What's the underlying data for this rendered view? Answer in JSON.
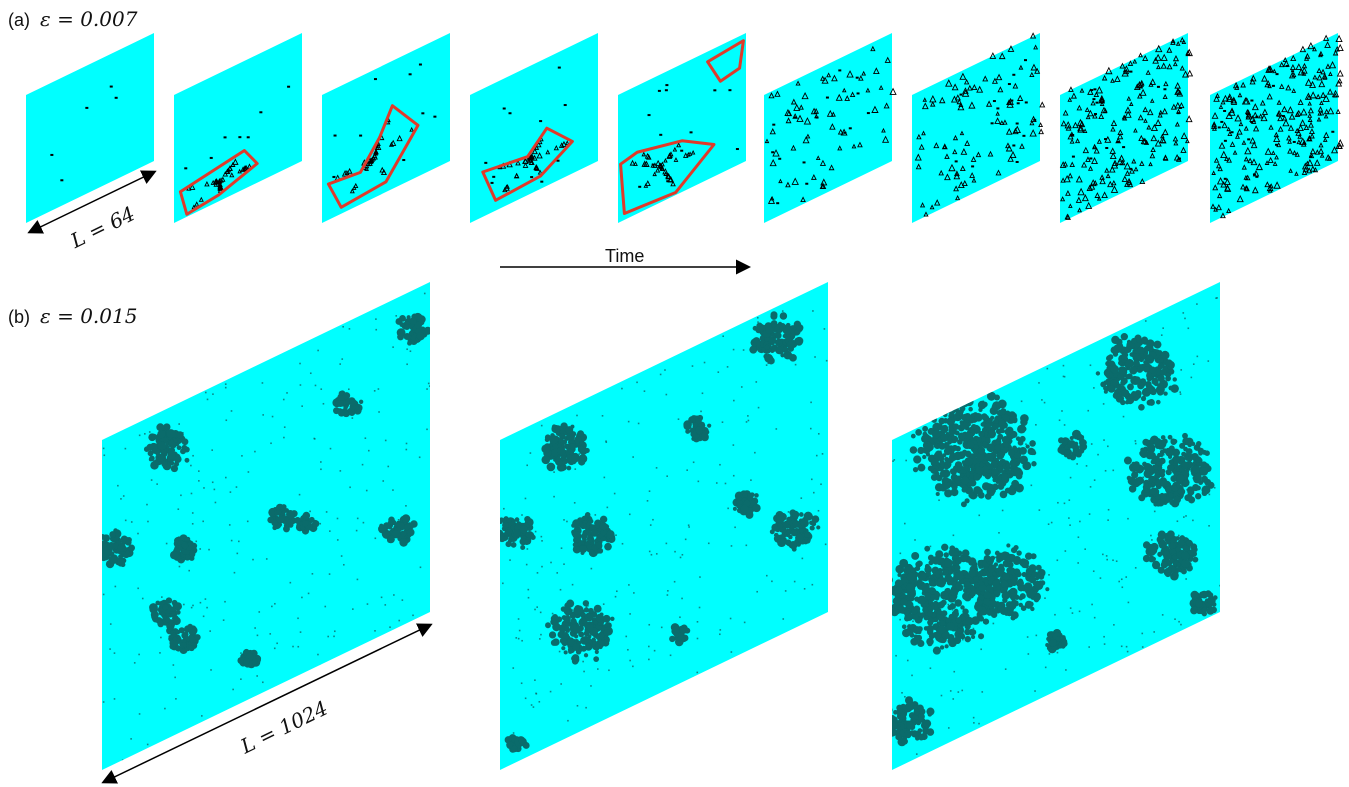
{
  "panel_a": {
    "tag": "(a)",
    "epsilon": "ε = 0.007",
    "size_label": "L = 64",
    "time_label": "Time",
    "frame_count": 9
  },
  "panel_b": {
    "tag": "(b)",
    "epsilon": "ε = 0.015",
    "size_label": "L = 1024",
    "frame_count": 3
  },
  "colors": {
    "background_cell": "#00ffff",
    "defect_cluster": "#0b6b6b",
    "small_defect": "#000000",
    "highlight_outline": "#e03a2a",
    "arrow": "#000000"
  }
}
